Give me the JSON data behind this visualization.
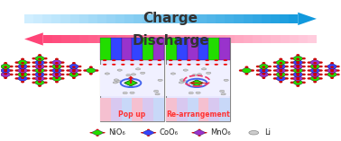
{
  "charge_text": "Charge",
  "discharge_text": "Discharge",
  "popup_text": "Pop up",
  "rearrange_text": "Re-arrangement",
  "legend_items": [
    {
      "label": "NiO₆",
      "color": "#22dd00",
      "edge_color": "#cc0000"
    },
    {
      "label": "CoO₆",
      "color": "#3344ff",
      "edge_color": "#cc0000"
    },
    {
      "label": "MnO₆",
      "color": "#9933cc",
      "edge_color": "#cc0000"
    },
    {
      "label": "Li",
      "color": "#cccccc",
      "edge_color": "#888888"
    }
  ],
  "bg_color": "#ffffff",
  "popup_color": "#ff3333",
  "rearrange_color": "#ff3333",
  "crystal_colors": [
    "#22dd00",
    "#3344ff",
    "#9933cc"
  ]
}
